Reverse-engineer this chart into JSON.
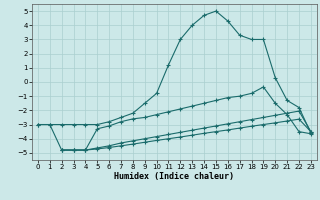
{
  "xlabel": "Humidex (Indice chaleur)",
  "bg_color": "#cce8e8",
  "grid_color": "#aacfcf",
  "line_color": "#1a6b6b",
  "line1_x": [
    0,
    1,
    2,
    3,
    4,
    5,
    6,
    7,
    8,
    9,
    10,
    11,
    12,
    13,
    14,
    15,
    16,
    17,
    18,
    19,
    20,
    21,
    22,
    23
  ],
  "line1_y": [
    -3.0,
    -3.0,
    -3.0,
    -3.0,
    -3.0,
    -3.0,
    -2.8,
    -2.5,
    -2.2,
    -1.5,
    -0.8,
    1.2,
    3.0,
    4.0,
    4.7,
    5.0,
    4.3,
    3.3,
    3.0,
    3.0,
    0.3,
    -1.3,
    -1.8,
    -3.6
  ],
  "line2_x": [
    2,
    3,
    4,
    5,
    6,
    7,
    8,
    9,
    10,
    11,
    12,
    13,
    14,
    15,
    16,
    17,
    18,
    19,
    20,
    21,
    22,
    23
  ],
  "line2_y": [
    -4.8,
    -4.8,
    -4.8,
    -3.3,
    -3.1,
    -2.8,
    -2.6,
    -2.5,
    -2.3,
    -2.1,
    -1.9,
    -1.7,
    -1.5,
    -1.3,
    -1.1,
    -1.0,
    -0.8,
    -0.35,
    -1.5,
    -2.3,
    -3.5,
    -3.65
  ],
  "line3_x": [
    2,
    3,
    4,
    5,
    6,
    7,
    8,
    9,
    10,
    11,
    12,
    13,
    14,
    15,
    16,
    17,
    18,
    19,
    20,
    21,
    22,
    23
  ],
  "line3_y": [
    -4.8,
    -4.8,
    -4.8,
    -4.65,
    -4.5,
    -4.3,
    -4.15,
    -4.0,
    -3.85,
    -3.7,
    -3.55,
    -3.4,
    -3.25,
    -3.1,
    -2.95,
    -2.8,
    -2.65,
    -2.5,
    -2.35,
    -2.2,
    -2.05,
    -3.5
  ],
  "line4_x": [
    0,
    1,
    2,
    3,
    4,
    5,
    6,
    7,
    8,
    9,
    10,
    11,
    12,
    13,
    14,
    15,
    16,
    17,
    18,
    19,
    20,
    21,
    22,
    23
  ],
  "line4_y": [
    -3.0,
    -3.0,
    -4.8,
    -4.8,
    -4.8,
    -4.72,
    -4.62,
    -4.5,
    -4.38,
    -4.25,
    -4.12,
    -4.0,
    -3.88,
    -3.75,
    -3.62,
    -3.5,
    -3.38,
    -3.25,
    -3.12,
    -3.0,
    -2.88,
    -2.75,
    -2.62,
    -3.5
  ],
  "xlim": [
    -0.5,
    23.5
  ],
  "ylim": [
    -5.5,
    5.5
  ],
  "yticks": [
    -5,
    -4,
    -3,
    -2,
    -1,
    0,
    1,
    2,
    3,
    4,
    5
  ],
  "xticks": [
    0,
    1,
    2,
    3,
    4,
    5,
    6,
    7,
    8,
    9,
    10,
    11,
    12,
    13,
    14,
    15,
    16,
    17,
    18,
    19,
    20,
    21,
    22,
    23
  ]
}
